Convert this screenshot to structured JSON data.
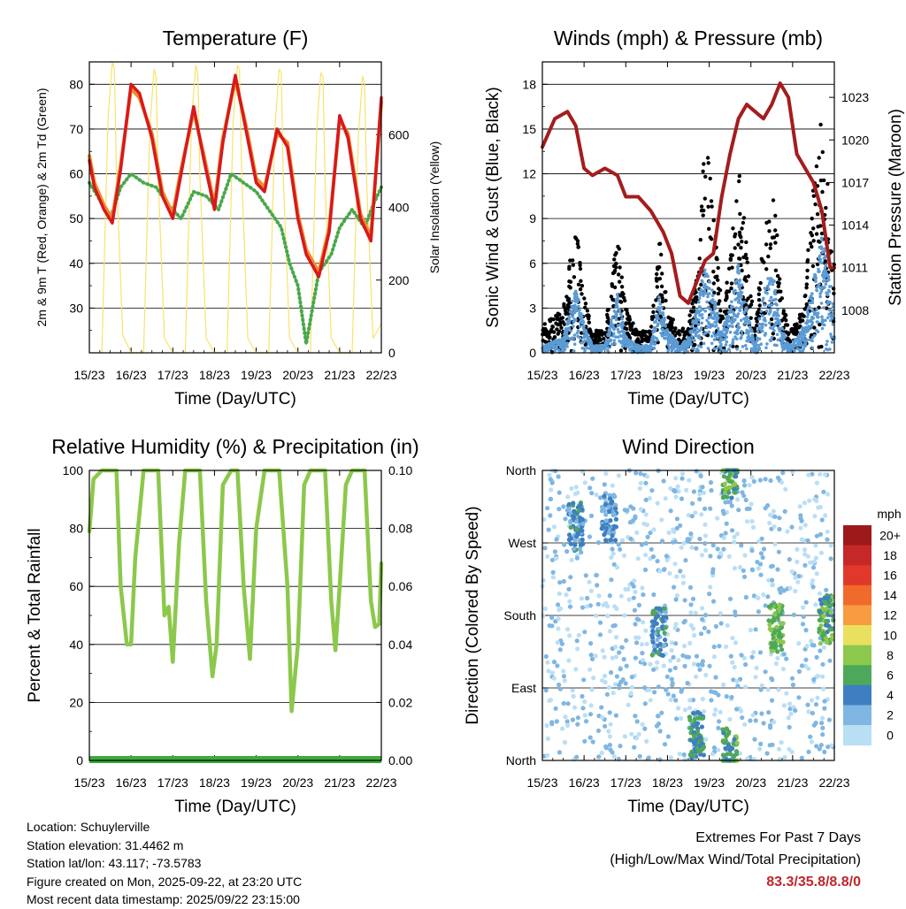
{
  "colors": {
    "temp2m": "#d7191c",
    "temp9m": "#f08c2c",
    "dewpoint": "#4aa84a",
    "solar": "#f7e36b",
    "gust": "#000000",
    "wind": "#5b9bd5",
    "pressure": "#a51c1c",
    "rh": "#8cc84b",
    "precip": "#3daa3d",
    "extremes": "#c0262b"
  },
  "chart_data": [
    {
      "id": "temperature",
      "type": "line",
      "title": "Temperature (F)",
      "xlabel": "Time (Day/UTC)",
      "ylabel": "2m & 9m T (Red, Orange) & 2m Td (Green)",
      "ylabel_right": "Solar Insolation (Yellow)",
      "x_ticks": [
        "15/23",
        "16/23",
        "17/23",
        "18/23",
        "19/23",
        "20/23",
        "21/23",
        "22/23"
      ],
      "xlim": [
        0,
        7
      ],
      "ylim": [
        20,
        85
      ],
      "y_ticks": [
        30,
        40,
        50,
        60,
        70,
        80
      ],
      "ylim_right": [
        0,
        800
      ],
      "y_ticks_right": [
        0,
        200,
        400,
        600
      ],
      "series": [
        {
          "name": "2m T",
          "color_key": "temp2m",
          "x": [
            0,
            0.12,
            0.35,
            0.55,
            0.75,
            1.0,
            1.2,
            1.5,
            1.75,
            2.0,
            2.2,
            2.5,
            2.75,
            3.0,
            3.2,
            3.5,
            3.75,
            4.0,
            4.2,
            4.5,
            4.75,
            5.0,
            5.2,
            5.5,
            5.75,
            6.0,
            6.2,
            6.5,
            6.75,
            7.0
          ],
          "y": [
            63,
            57,
            52,
            49,
            61,
            80,
            78,
            68,
            55,
            50,
            60,
            75,
            63,
            52,
            67,
            82,
            70,
            58,
            56,
            70,
            66,
            50,
            42,
            37,
            47,
            73,
            68,
            50,
            45,
            77
          ]
        },
        {
          "name": "9m T",
          "color_key": "temp9m",
          "x": [
            0,
            0.12,
            0.35,
            0.55,
            0.75,
            1.0,
            1.2,
            1.5,
            1.75,
            2.0,
            2.2,
            2.5,
            2.75,
            3.0,
            3.2,
            3.5,
            3.75,
            4.0,
            4.2,
            4.5,
            4.75,
            5.0,
            5.2,
            5.5,
            5.75,
            6.0,
            6.2,
            6.5,
            6.75,
            7.0
          ],
          "y": [
            64,
            58,
            53,
            50,
            62,
            79,
            77,
            69,
            56,
            51,
            61,
            74,
            64,
            53,
            68,
            81,
            71,
            59,
            57,
            69,
            67,
            51,
            43,
            38,
            48,
            72,
            69,
            51,
            46,
            76
          ]
        },
        {
          "name": "2m Td",
          "color_key": "dewpoint",
          "x": [
            0,
            0.2,
            0.5,
            0.75,
            1.0,
            1.3,
            1.6,
            1.9,
            2.2,
            2.5,
            2.8,
            3.1,
            3.4,
            3.7,
            4.0,
            4.3,
            4.6,
            4.8,
            5.0,
            5.2,
            5.5,
            5.8,
            6.0,
            6.3,
            6.6,
            6.8,
            7.0
          ],
          "y": [
            58,
            55,
            50,
            57,
            60,
            58,
            57,
            53,
            50,
            56,
            55,
            52,
            60,
            58,
            56,
            52,
            48,
            40,
            35,
            22,
            38,
            42,
            48,
            52,
            48,
            53,
            57
          ]
        },
        {
          "name": "Solar Insolation",
          "axis": "right",
          "color_key": "solar",
          "x": [
            0,
            0.3,
            0.45,
            0.55,
            0.6,
            0.65,
            0.8,
            1.0,
            1.3,
            1.45,
            1.55,
            1.6,
            1.65,
            1.8,
            2.0,
            2.3,
            2.45,
            2.55,
            2.6,
            2.65,
            2.8,
            3.0,
            3.3,
            3.45,
            3.55,
            3.6,
            3.65,
            3.8,
            4.0,
            4.3,
            4.45,
            4.55,
            4.6,
            4.65,
            4.8,
            5.0,
            5.3,
            5.45,
            5.55,
            5.6,
            5.65,
            5.8,
            6.0,
            6.3,
            6.45,
            6.55,
            6.6,
            6.65,
            6.8,
            7.0
          ],
          "y": [
            0,
            0,
            650,
            800,
            780,
            500,
            50,
            0,
            0,
            620,
            780,
            760,
            480,
            40,
            0,
            0,
            640,
            790,
            770,
            490,
            40,
            0,
            0,
            640,
            790,
            780,
            500,
            40,
            0,
            0,
            620,
            780,
            770,
            480,
            40,
            0,
            0,
            610,
            770,
            760,
            470,
            40,
            0,
            0,
            600,
            760,
            740,
            460,
            40,
            80
          ]
        }
      ]
    },
    {
      "id": "winds",
      "type": "scatter",
      "title": "Winds (mph) & Pressure (mb)",
      "xlabel": "Time (Day/UTC)",
      "ylabel": "Sonic Wind & Gust (Blue, Black)",
      "ylabel_right": "Station Pressure (Maroon)",
      "x_ticks": [
        "15/23",
        "16/23",
        "17/23",
        "18/23",
        "19/23",
        "20/23",
        "21/23",
        "22/23"
      ],
      "xlim": [
        0,
        7
      ],
      "ylim": [
        0,
        19.5
      ],
      "y_ticks": [
        0,
        3,
        6,
        9,
        12,
        15,
        18
      ],
      "ylim_right": [
        1005,
        1025.5
      ],
      "y_ticks_right": [
        1008,
        1011,
        1014,
        1017,
        1020,
        1023
      ],
      "gust_envelope": {
        "x": [
          0,
          0.5,
          0.8,
          1.0,
          1.2,
          1.5,
          1.8,
          2.0,
          2.3,
          2.6,
          2.8,
          3.0,
          3.3,
          3.5,
          3.7,
          3.9,
          4.1,
          4.3,
          4.5,
          4.7,
          4.9,
          5.1,
          5.3,
          5.5,
          5.7,
          5.9,
          6.1,
          6.3,
          6.5,
          6.7,
          6.9,
          7.0
        ],
        "y": [
          2,
          3,
          9,
          4,
          1.5,
          1.5,
          8,
          3,
          1.5,
          1.5,
          8,
          3,
          1.5,
          2,
          5,
          15,
          10,
          3,
          6,
          14,
          7,
          1.5,
          8,
          13,
          5,
          1.5,
          2,
          4,
          12,
          16,
          10,
          6
        ]
      },
      "wind_envelope": {
        "x": [
          0,
          0.5,
          0.8,
          1.0,
          1.2,
          1.5,
          1.8,
          2.0,
          2.3,
          2.6,
          2.8,
          3.0,
          3.3,
          3.5,
          3.7,
          3.9,
          4.1,
          4.3,
          4.5,
          4.7,
          4.9,
          5.1,
          5.3,
          5.5,
          5.7,
          5.9,
          6.1,
          6.3,
          6.5,
          6.7,
          6.9,
          7.0
        ],
        "y": [
          0.5,
          1,
          4.5,
          2,
          0.5,
          0.5,
          4,
          1,
          0.5,
          0.5,
          4,
          1.5,
          0.5,
          1,
          3,
          6,
          4,
          1.5,
          3,
          6,
          3,
          0.5,
          4,
          6,
          2,
          0.5,
          1,
          2,
          5,
          8,
          5,
          3
        ]
      },
      "series": [
        {
          "name": "Station Pressure",
          "axis": "right",
          "color_key": "pressure",
          "x": [
            0,
            0.3,
            0.6,
            0.8,
            1.0,
            1.2,
            1.5,
            1.8,
            2.0,
            2.3,
            2.6,
            2.9,
            3.1,
            3.3,
            3.5,
            3.7,
            3.9,
            4.1,
            4.3,
            4.5,
            4.7,
            4.9,
            5.1,
            5.3,
            5.5,
            5.7,
            5.9,
            6.1,
            6.3,
            6.5,
            6.7,
            6.9,
            7.0
          ],
          "y": [
            1019.5,
            1021.5,
            1022,
            1021,
            1018,
            1017.5,
            1018,
            1017.5,
            1016,
            1016,
            1015,
            1013.5,
            1012,
            1009,
            1008.5,
            1010,
            1011.5,
            1012,
            1016,
            1019,
            1021.5,
            1022.5,
            1022,
            1021.5,
            1022.5,
            1024,
            1023,
            1019,
            1018,
            1017,
            1015,
            1011,
            1011
          ]
        }
      ]
    },
    {
      "id": "humidity",
      "type": "line",
      "title": "Relative Humidity (%) & Precipitation (in)",
      "xlabel": "Time (Day/UTC)",
      "ylabel": "Percent & Total Rainfall",
      "x_ticks": [
        "15/23",
        "16/23",
        "17/23",
        "18/23",
        "19/23",
        "20/23",
        "21/23",
        "22/23"
      ],
      "xlim": [
        0,
        7
      ],
      "ylim": [
        0,
        100
      ],
      "y_ticks": [
        0,
        20,
        40,
        60,
        80,
        100
      ],
      "ylim_right": [
        0,
        0.1
      ],
      "y_ticks_right": [
        "0.00",
        "0.02",
        "0.04",
        "0.06",
        "0.08",
        "0.10"
      ],
      "series": [
        {
          "name": "Relative Humidity",
          "color_key": "rh",
          "x": [
            0,
            0.1,
            0.3,
            0.5,
            0.65,
            0.75,
            0.9,
            1.0,
            1.1,
            1.3,
            1.5,
            1.65,
            1.8,
            1.9,
            2.0,
            2.15,
            2.3,
            2.5,
            2.65,
            2.8,
            2.95,
            3.05,
            3.2,
            3.4,
            3.55,
            3.7,
            3.85,
            4.0,
            4.2,
            4.4,
            4.55,
            4.75,
            4.85,
            5.0,
            5.15,
            5.3,
            5.5,
            5.65,
            5.8,
            5.9,
            6.0,
            6.15,
            6.3,
            6.45,
            6.6,
            6.75,
            6.85,
            6.95,
            7.0
          ],
          "y": [
            79,
            97,
            100,
            100,
            100,
            60,
            40,
            40,
            70,
            100,
            100,
            100,
            50,
            53,
            34,
            75,
            100,
            100,
            100,
            55,
            29,
            40,
            95,
            100,
            100,
            60,
            35,
            80,
            100,
            100,
            100,
            60,
            17,
            40,
            95,
            100,
            100,
            100,
            55,
            38,
            60,
            95,
            100,
            100,
            100,
            55,
            46,
            47,
            68
          ]
        },
        {
          "name": "Total Precipitation",
          "axis": "right",
          "color_key": "precip",
          "x": [
            0,
            7
          ],
          "y": [
            0,
            0
          ]
        }
      ]
    },
    {
      "id": "wind_direction",
      "type": "scatter",
      "title": "Wind Direction",
      "xlabel": "Time (Day/UTC)",
      "ylabel": "Direction (Colored By Speed)",
      "x_ticks": [
        "15/23",
        "16/23",
        "17/23",
        "18/23",
        "19/23",
        "20/23",
        "21/23",
        "22/23"
      ],
      "xlim": [
        0,
        7
      ],
      "ylim": [
        0,
        360
      ],
      "y_ticks": [
        "North",
        "East",
        "South",
        "West",
        "North"
      ],
      "colorbar": {
        "unit": "mph",
        "labels": [
          "20+",
          "18",
          "16",
          "14",
          "12",
          "10",
          "8",
          "6",
          "4",
          "2",
          "0"
        ],
        "colors": [
          "#9e1a1a",
          "#c62828",
          "#e0382b",
          "#f06a2b",
          "#f89b41",
          "#e9e05f",
          "#8cc84b",
          "#4ea85a",
          "#3d7fc0",
          "#7fb6e2",
          "#b9dff5"
        ]
      },
      "clusters": [
        {
          "x": 0.8,
          "dir": 290,
          "speed": 4
        },
        {
          "x": 1.6,
          "dir": 300,
          "speed": 3
        },
        {
          "x": 2.8,
          "dir": 160,
          "speed": 4
        },
        {
          "x": 3.7,
          "dir": 30,
          "speed": 5
        },
        {
          "x": 4.5,
          "dir": 355,
          "speed": 6
        },
        {
          "x": 4.5,
          "dir": 10,
          "speed": 6
        },
        {
          "x": 5.6,
          "dir": 165,
          "speed": 7
        },
        {
          "x": 6.8,
          "dir": 175,
          "speed": 6
        }
      ]
    }
  ],
  "info": {
    "location": "Location: Schuylerville",
    "elevation": "Station elevation: 31.4462 m",
    "latlon": "Station lat/lon: 43.117; -73.5783",
    "created": "Figure created on Mon, 2025-09-22, at 23:20 UTC",
    "timestamp": "Most recent data timestamp: 2025/09/22 23:15:00"
  },
  "extremes": {
    "title": "Extremes For Past 7 Days",
    "subtitle": "(High/Low/Max Wind/Total Precipitation)",
    "value": "83.3/35.8/8.8/0"
  }
}
